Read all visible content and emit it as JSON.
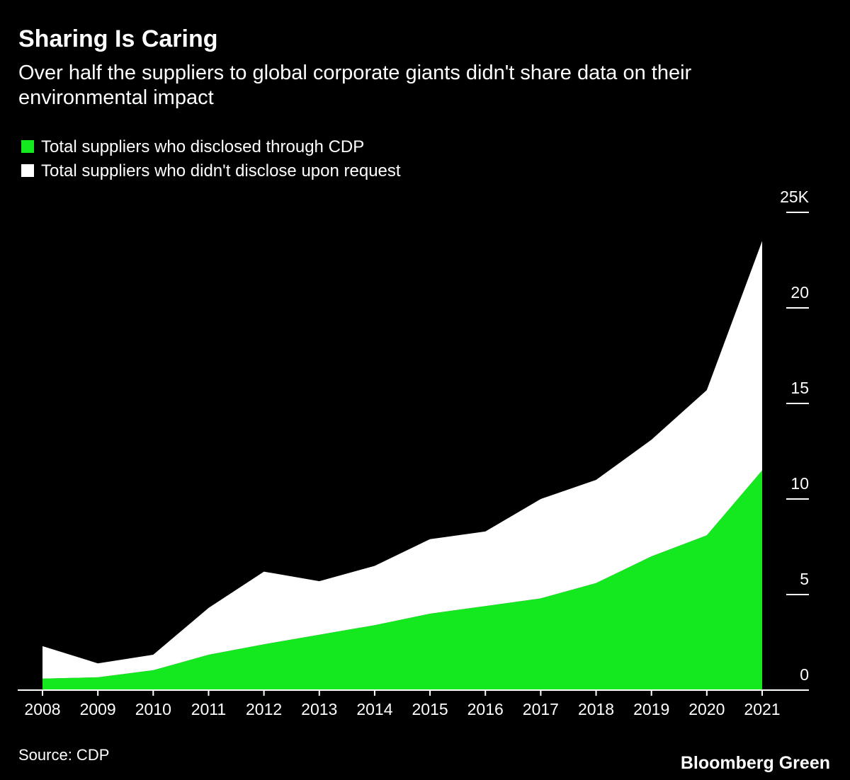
{
  "chart_data": {
    "type": "stacked-area",
    "title": "Sharing Is Caring",
    "subtitle": [
      "Over half the suppliers to global corporate giants didn't share data on their",
      "environmental impact"
    ],
    "categories": [
      "2008",
      "2009",
      "2010",
      "2011",
      "2012",
      "2013",
      "2014",
      "2015",
      "2016",
      "2017",
      "2018",
      "2019",
      "2020",
      "2021"
    ],
    "series": [
      {
        "name": "Total suppliers who disclosed through CDP",
        "color": "#14e81e",
        "values": [
          0.6,
          0.67,
          1.04,
          1.85,
          2.4,
          2.9,
          3.4,
          4.0,
          4.4,
          4.8,
          5.6,
          7.0,
          8.1,
          11.5
        ]
      },
      {
        "name": "Total suppliers who didn't disclose upon request",
        "color": "#ffffff",
        "values": [
          1.7,
          0.73,
          0.81,
          2.45,
          3.8,
          2.8,
          3.1,
          3.9,
          3.9,
          5.2,
          5.4,
          6.1,
          7.6,
          12.0
        ]
      }
    ],
    "ylim": [
      0,
      25
    ],
    "yticks": [
      0,
      5,
      10,
      15,
      20,
      {
        "value": 25,
        "label": "25K"
      }
    ],
    "source": "Source: CDP",
    "brand": "Bloomberg Green"
  }
}
